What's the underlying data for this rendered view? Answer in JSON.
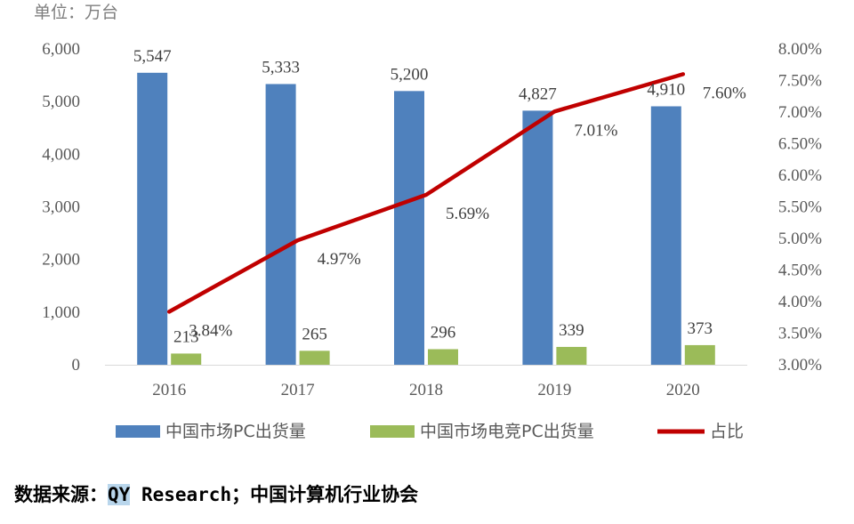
{
  "unit_label": "单位：万台",
  "chart_data": {
    "type": "bar",
    "categories": [
      "2016",
      "2017",
      "2018",
      "2019",
      "2020"
    ],
    "series": [
      {
        "name": "中国市场PC出货量",
        "kind": "bar",
        "axis": "left",
        "color": "#4f81bd",
        "values": [
          5547,
          5333,
          5200,
          4827,
          4910
        ],
        "labels": [
          "5,547",
          "5,333",
          "5,200",
          "4,827",
          "4,910"
        ]
      },
      {
        "name": "中国市场电竞PC出货量",
        "kind": "bar",
        "axis": "left",
        "color": "#9bbb59",
        "values": [
          213,
          265,
          296,
          339,
          373
        ],
        "labels": [
          "213",
          "265",
          "296",
          "339",
          "373"
        ]
      },
      {
        "name": "占比",
        "kind": "line",
        "axis": "right",
        "color": "#c00000",
        "values": [
          3.84,
          4.97,
          5.69,
          7.01,
          7.6
        ],
        "labels": [
          "3.84%",
          "4.97%",
          "5.69%",
          "7.01%",
          "7.60%"
        ]
      }
    ],
    "y_left": {
      "min": 0,
      "max": 6000,
      "step": 1000,
      "ticks": [
        "0",
        "1,000",
        "2,000",
        "3,000",
        "4,000",
        "5,000",
        "6,000"
      ]
    },
    "y_right": {
      "min": 3.0,
      "max": 8.0,
      "step": 0.5,
      "ticks": [
        "3.00%",
        "3.50%",
        "4.00%",
        "4.50%",
        "5.00%",
        "5.50%",
        "6.00%",
        "6.50%",
        "7.00%",
        "7.50%",
        "8.00%"
      ]
    },
    "legend_position": "bottom"
  },
  "source": {
    "prefix": "数据来源：",
    "highlight": "QY",
    "rest": " Research；中国计算机行业协会"
  }
}
